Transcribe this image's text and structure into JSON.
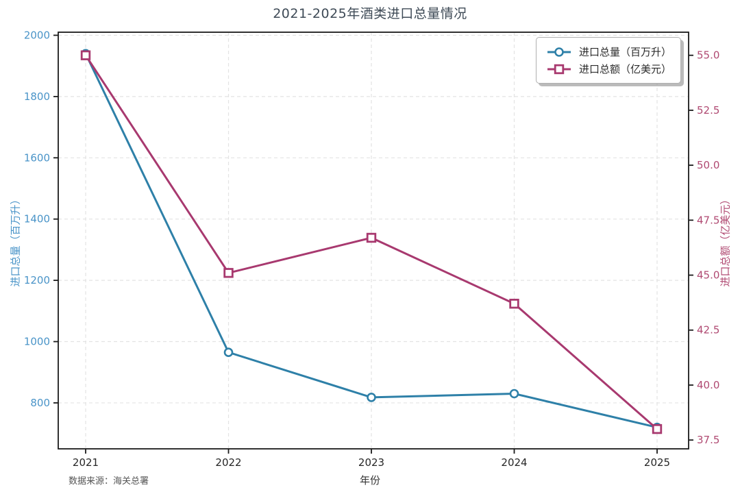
{
  "figure": {
    "title": "2021-2025年酒类进口总量情况",
    "source_note": "数据来源：海关总署"
  },
  "chart_data": {
    "type": "line",
    "title": "2021-2025年酒类进口总量情况",
    "xlabel": "年份",
    "categories": [
      "2021",
      "2022",
      "2023",
      "2024",
      "2025"
    ],
    "series": [
      {
        "name": "进口总量（百万升）",
        "axis": "left",
        "marker": "circle",
        "color": "#2e80a8",
        "values": [
          1940,
          965,
          818,
          830,
          720
        ]
      },
      {
        "name": "进口总额（亿美元）",
        "axis": "right",
        "marker": "square",
        "color": "#a8396f",
        "values": [
          55.0,
          45.1,
          46.7,
          43.7,
          38.0
        ]
      }
    ],
    "left_axis": {
      "label": "进口总量（百万升）",
      "tick_values": [
        800,
        1000,
        1200,
        1400,
        1600,
        1800,
        2000
      ],
      "tick_labels": [
        "800",
        "1000",
        "1200",
        "1400",
        "1600",
        "1800",
        "2000"
      ],
      "ylim": [
        650,
        2010
      ],
      "color": "#4a94c8"
    },
    "right_axis": {
      "label": "进口总额（亿美元）",
      "tick_values": [
        37.5,
        40.0,
        42.5,
        45.0,
        47.5,
        50.0,
        52.5,
        55.0
      ],
      "tick_labels": [
        "37.5",
        "40.0",
        "42.5",
        "45.0",
        "47.5",
        "50.0",
        "52.5",
        "55.0"
      ],
      "ylim": [
        37.1,
        56.05
      ],
      "color": "#b04a72"
    },
    "grid": true,
    "legend": {
      "position": "upper right",
      "entries": [
        "进口总量（百万升）",
        "进口总额（亿美元）"
      ]
    }
  }
}
